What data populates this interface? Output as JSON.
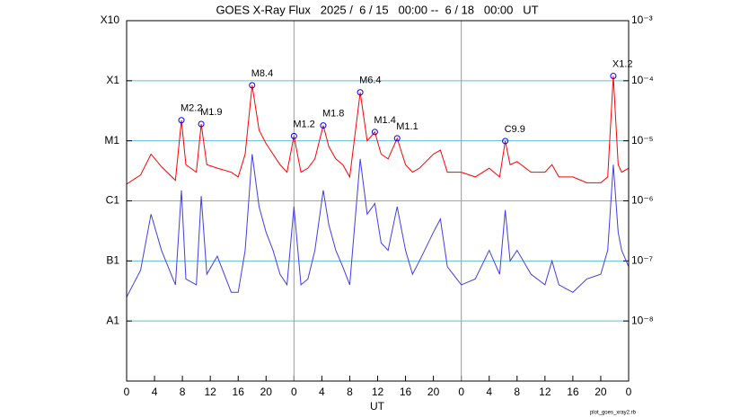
{
  "chart_data": {
    "type": "line",
    "title": "GOES X-Ray Flux   2025 /  6 / 15   00:00 --  6 / 18   00:00   UT",
    "xlabel": "UT",
    "footer": "plot_goes_xray2.rb",
    "log_y": true,
    "grid": true,
    "grid_color": "#5bc0de",
    "day_lines": [
      24,
      48
    ],
    "xlim": [
      0,
      72
    ],
    "xticks": [
      0,
      4,
      8,
      12,
      16,
      20,
      {
        "value": 24,
        "label": "0"
      },
      {
        "value": 28,
        "label": "4"
      },
      {
        "value": 32,
        "label": "8"
      },
      {
        "value": 36,
        "label": "12"
      },
      {
        "value": 40,
        "label": "16"
      },
      {
        "value": 44,
        "label": "20"
      },
      {
        "value": 48,
        "label": "0"
      },
      {
        "value": 52,
        "label": "4"
      },
      {
        "value": 56,
        "label": "8"
      },
      {
        "value": 60,
        "label": "12"
      },
      {
        "value": 64,
        "label": "16"
      },
      {
        "value": 68,
        "label": "20"
      },
      {
        "value": 72,
        "label": "0"
      }
    ],
    "ylim": [
      1e-09,
      0.001
    ],
    "yticks": [
      {
        "value": 0.001,
        "label": "X10"
      },
      {
        "value": 0.0001,
        "label": "X1"
      },
      {
        "value": 1e-05,
        "label": "M1"
      },
      {
        "value": 1e-06,
        "label": "C1"
      },
      {
        "value": 1e-07,
        "label": "B1"
      },
      {
        "value": 1e-08,
        "label": "A1"
      }
    ],
    "y2lim": [
      1e-09,
      0.001
    ],
    "y2ticks": [
      {
        "value": 0.001,
        "label": "10⁻³"
      },
      {
        "value": 0.0001,
        "label": "10⁻⁴"
      },
      {
        "value": 1e-05,
        "label": "10⁻⁵"
      },
      {
        "value": 1e-06,
        "label": "10⁻⁶"
      },
      {
        "value": 1e-07,
        "label": "10⁻⁷"
      },
      {
        "value": 1e-08,
        "label": "10⁻⁸"
      }
    ],
    "x": [
      0,
      2,
      3.5,
      5,
      7,
      7.86,
      8.5,
      10,
      10.7,
      11.5,
      13,
      15,
      16,
      17,
      18,
      19,
      20,
      21,
      22,
      23,
      24,
      25,
      26,
      27,
      28.2,
      29,
      30,
      31,
      32,
      33.5,
      34.5,
      35.6,
      36.5,
      37.5,
      38.8,
      40,
      41,
      42,
      44,
      45,
      46,
      48,
      50,
      52,
      53.5,
      54.3,
      55,
      56,
      58,
      60,
      61,
      62,
      64,
      66,
      68,
      69,
      69.8,
      70.5,
      71,
      72
    ],
    "series": [
      {
        "color": "#ff0000",
        "values": [
          1.9e-06,
          2.7e-06,
          6e-06,
          3.7e-06,
          2.2e-06,
          2.2e-05,
          4e-06,
          3e-06,
          1.9e-05,
          4e-06,
          3.5e-06,
          3e-06,
          2.5e-06,
          6e-06,
          8.4e-05,
          1.5e-05,
          9e-06,
          6e-06,
          4e-06,
          3e-06,
          1.2e-05,
          3e-06,
          3.5e-06,
          5e-06,
          1.8e-05,
          8e-06,
          5e-06,
          4e-06,
          2.5e-06,
          6.4e-05,
          1e-05,
          1.4e-05,
          6e-06,
          5e-06,
          1.1e-05,
          4e-06,
          3e-06,
          3.5e-06,
          6e-06,
          7e-06,
          3e-06,
          3e-06,
          2.5e-06,
          3.5e-06,
          2.5e-06,
          9.9e-06,
          4e-06,
          4.5e-06,
          3e-06,
          3e-06,
          4e-06,
          2.5e-06,
          2.5e-06,
          2e-06,
          2e-06,
          2.5e-06,
          0.00012,
          4e-06,
          3e-06,
          3.5e-06
        ]
      },
      {
        "color": "#3f3fe6",
        "values": [
          2.5e-08,
          7e-08,
          6e-07,
          1.5e-07,
          4e-08,
          1.5e-06,
          5e-08,
          4e-08,
          1.2e-06,
          6e-08,
          1.2e-07,
          3e-08,
          3e-08,
          1.5e-07,
          6e-06,
          8e-07,
          3e-07,
          1.5e-07,
          6e-08,
          4e-08,
          8e-07,
          4e-08,
          5e-08,
          1.5e-07,
          1.5e-06,
          4e-07,
          1.5e-07,
          8e-08,
          4e-08,
          5e-06,
          6e-07,
          9e-07,
          2e-07,
          1.5e-07,
          8e-07,
          1.5e-07,
          6e-08,
          1e-07,
          3e-07,
          5e-07,
          8e-08,
          4e-08,
          5e-08,
          1.5e-07,
          6e-08,
          7e-07,
          1e-07,
          1.5e-07,
          6e-08,
          4e-08,
          1e-07,
          4e-08,
          3e-08,
          5e-08,
          6e-08,
          1.5e-07,
          4e-06,
          3e-07,
          1.5e-07,
          8e-08
        ]
      }
    ],
    "flares": [
      {
        "label": "M2.2",
        "x": 7.86,
        "value": 2.2e-05
      },
      {
        "label": "M1.9",
        "x": 10.7,
        "value": 1.9e-05
      },
      {
        "label": "M8.4",
        "x": 18,
        "value": 8.4e-05
      },
      {
        "label": "M1.2",
        "x": 24,
        "value": 1.2e-05
      },
      {
        "label": "M1.8",
        "x": 28.2,
        "value": 1.8e-05
      },
      {
        "label": "M6.4",
        "x": 33.5,
        "value": 6.4e-05
      },
      {
        "label": "M1.4",
        "x": 35.6,
        "value": 1.4e-05
      },
      {
        "label": "M1.1",
        "x": 38.8,
        "value": 1.1e-05
      },
      {
        "label": "C9.9",
        "x": 54.3,
        "value": 9.9e-06
      },
      {
        "label": "X1.2",
        "x": 69.8,
        "value": 0.00012
      }
    ]
  }
}
